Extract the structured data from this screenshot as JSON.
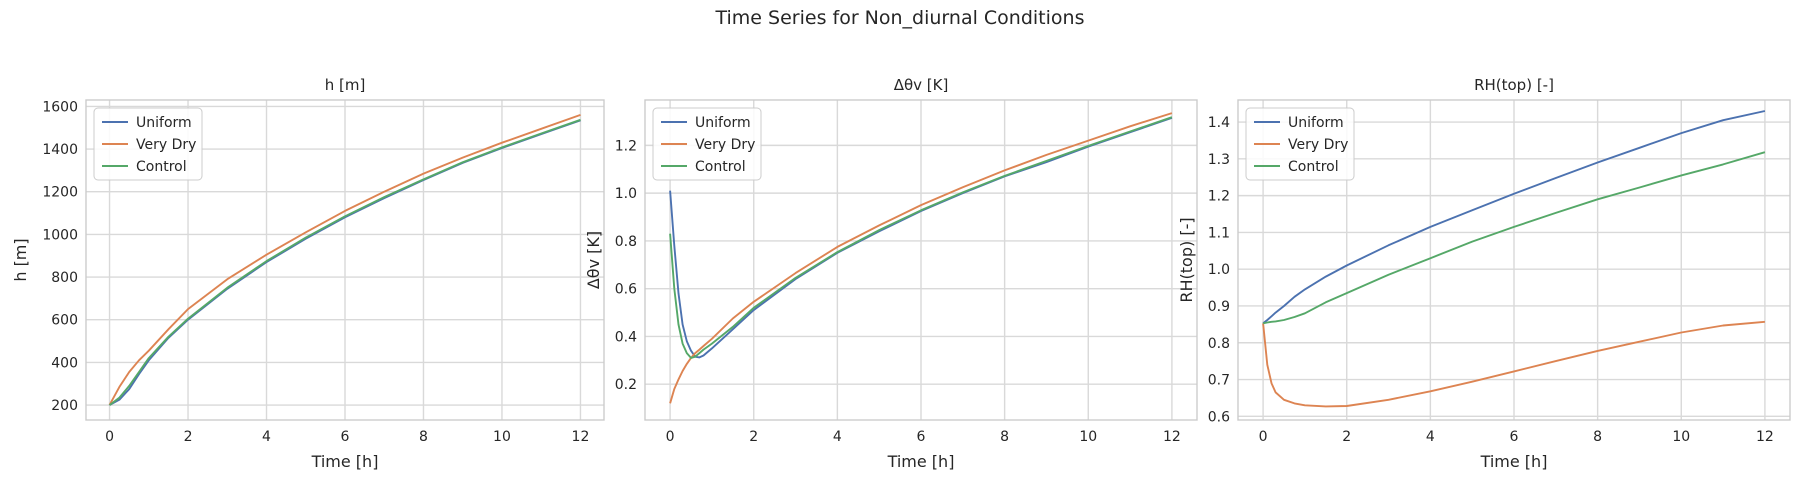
{
  "figure": {
    "suptitle": "Time Series for Non_diurnal Conditions"
  },
  "colors": {
    "Uniform": "#4c72b0",
    "Very Dry": "#dd8452",
    "Control": "#55a868"
  },
  "chart_data": [
    {
      "type": "line",
      "title": "h [m]",
      "xlabel": "Time [h]",
      "ylabel": "h [m]",
      "xlim": [
        -0.6,
        12.6
      ],
      "ylim": [
        130,
        1630
      ],
      "xticks": [
        0,
        2,
        4,
        6,
        8,
        10,
        12
      ],
      "yticks": [
        200,
        400,
        600,
        800,
        1000,
        1200,
        1400,
        1600
      ],
      "grid": true,
      "legend": "top-left",
      "x": [
        0,
        0.25,
        0.5,
        0.75,
        1,
        1.5,
        2,
        3,
        4,
        5,
        6,
        7,
        8,
        9,
        10,
        11,
        12
      ],
      "series": [
        {
          "name": "Uniform",
          "values": [
            200,
            225,
            275,
            345,
            410,
            515,
            600,
            745,
            870,
            980,
            1080,
            1170,
            1255,
            1335,
            1405,
            1470,
            1535
          ]
        },
        {
          "name": "Very Dry",
          "values": [
            200,
            285,
            355,
            410,
            455,
            555,
            650,
            790,
            905,
            1010,
            1110,
            1200,
            1285,
            1360,
            1430,
            1495,
            1560
          ]
        },
        {
          "name": "Control",
          "values": [
            200,
            235,
            290,
            355,
            420,
            520,
            605,
            750,
            875,
            985,
            1085,
            1175,
            1258,
            1338,
            1408,
            1473,
            1537
          ]
        }
      ]
    },
    {
      "type": "line",
      "title": "Δθv [K]",
      "xlabel": "Time [h]",
      "ylabel": "Δθv [K]",
      "xlim": [
        -0.6,
        12.6
      ],
      "ylim": [
        0.05,
        1.39
      ],
      "xticks": [
        0,
        2,
        4,
        6,
        8,
        10,
        12
      ],
      "yticks": [
        0.2,
        0.4,
        0.6,
        0.8,
        1.0,
        1.2
      ],
      "grid": true,
      "legend": "top-left",
      "x": [
        0,
        0.1,
        0.2,
        0.3,
        0.4,
        0.5,
        0.6,
        0.7,
        0.8,
        1,
        1.5,
        2,
        3,
        4,
        5,
        6,
        7,
        8,
        9,
        10,
        11,
        12
      ],
      "series": [
        {
          "name": "Uniform",
          "values": [
            1.01,
            0.78,
            0.58,
            0.45,
            0.38,
            0.34,
            0.315,
            0.312,
            0.32,
            0.35,
            0.43,
            0.51,
            0.64,
            0.75,
            0.84,
            0.925,
            1.0,
            1.07,
            1.13,
            1.195,
            1.255,
            1.315
          ]
        },
        {
          "name": "Very Dry",
          "values": [
            0.12,
            0.18,
            0.22,
            0.255,
            0.285,
            0.31,
            0.33,
            0.345,
            0.36,
            0.39,
            0.475,
            0.545,
            0.665,
            0.775,
            0.865,
            0.95,
            1.025,
            1.095,
            1.16,
            1.22,
            1.28,
            1.335
          ]
        },
        {
          "name": "Control",
          "values": [
            0.83,
            0.6,
            0.45,
            0.37,
            0.33,
            0.31,
            0.315,
            0.33,
            0.345,
            0.37,
            0.44,
            0.52,
            0.645,
            0.753,
            0.845,
            0.928,
            1.003,
            1.072,
            1.135,
            1.198,
            1.258,
            1.318
          ]
        }
      ]
    },
    {
      "type": "line",
      "title": "RH(top) [-]",
      "xlabel": "Time [h]",
      "ylabel": "RH(top) [-]",
      "xlim": [
        -0.6,
        12.6
      ],
      "ylim": [
        0.59,
        1.46
      ],
      "xticks": [
        0,
        2,
        4,
        6,
        8,
        10,
        12
      ],
      "yticks": [
        0.6,
        0.7,
        0.8,
        0.9,
        1.0,
        1.1,
        1.2,
        1.3,
        1.4
      ],
      "grid": true,
      "legend": "top-left",
      "x": [
        0,
        0.1,
        0.2,
        0.3,
        0.5,
        0.75,
        1,
        1.5,
        2,
        3,
        4,
        5,
        6,
        7,
        8,
        9,
        10,
        11,
        12
      ],
      "series": [
        {
          "name": "Uniform",
          "values": [
            0.853,
            0.862,
            0.872,
            0.882,
            0.9,
            0.925,
            0.945,
            0.98,
            1.01,
            1.065,
            1.115,
            1.16,
            1.205,
            1.248,
            1.29,
            1.33,
            1.37,
            1.405,
            1.43
          ]
        },
        {
          "name": "Very Dry",
          "values": [
            0.853,
            0.74,
            0.69,
            0.665,
            0.645,
            0.635,
            0.63,
            0.627,
            0.628,
            0.645,
            0.668,
            0.694,
            0.722,
            0.75,
            0.778,
            0.803,
            0.828,
            0.847,
            0.857
          ]
        },
        {
          "name": "Control",
          "values": [
            0.853,
            0.855,
            0.857,
            0.858,
            0.862,
            0.87,
            0.88,
            0.91,
            0.935,
            0.985,
            1.03,
            1.075,
            1.115,
            1.153,
            1.19,
            1.222,
            1.255,
            1.285,
            1.318
          ]
        }
      ]
    }
  ]
}
